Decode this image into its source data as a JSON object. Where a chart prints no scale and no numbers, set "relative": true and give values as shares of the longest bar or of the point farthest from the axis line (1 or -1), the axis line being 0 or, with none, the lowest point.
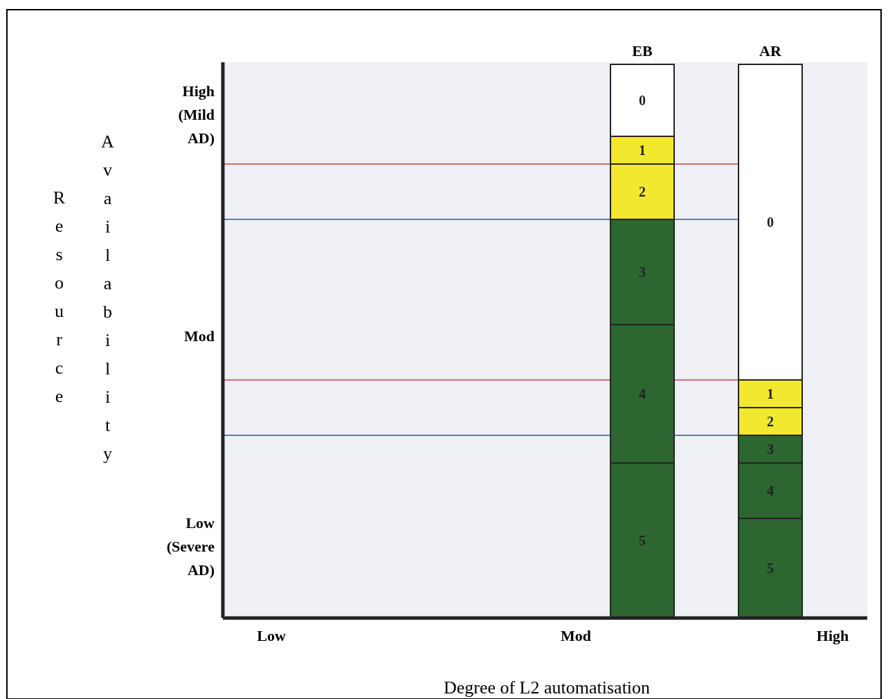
{
  "chart_data": {
    "type": "bar",
    "stacked": true,
    "relative": true,
    "legend": false,
    "grid": false,
    "categories": [
      "EB",
      "AR"
    ],
    "xlabel": "Degree of L2 automatisation",
    "ylabel": "Resource Availability",
    "series": [
      {
        "name": "5",
        "color": "#2d6630",
        "values": [
          0.28,
          0.18
        ]
      },
      {
        "name": "4",
        "color": "#2d6630",
        "values": [
          0.25,
          0.1
        ]
      },
      {
        "name": "3",
        "color": "#2d6630",
        "values": [
          0.19,
          0.05
        ]
      },
      {
        "name": "2",
        "color": "#f2e830",
        "values": [
          0.1,
          0.05
        ]
      },
      {
        "name": "1",
        "color": "#f2e830",
        "values": [
          0.05,
          0.05
        ]
      },
      {
        "name": "0",
        "color": "#ffffff",
        "values": [
          0.13,
          0.57
        ]
      }
    ],
    "ref_lines": [
      {
        "axis": "y",
        "value": 0.82,
        "color": "#d04040"
      },
      {
        "axis": "y",
        "value": 0.72,
        "color": "#3050b0"
      },
      {
        "axis": "y",
        "value": 0.43,
        "color": "#d04040"
      },
      {
        "axis": "y",
        "value": 0.33,
        "color": "#3050b0"
      }
    ],
    "annotations": [
      "High (Mild AD)",
      "Mod",
      "Low (Severe AD)",
      "Low",
      "Mod",
      "High"
    ]
  }
}
